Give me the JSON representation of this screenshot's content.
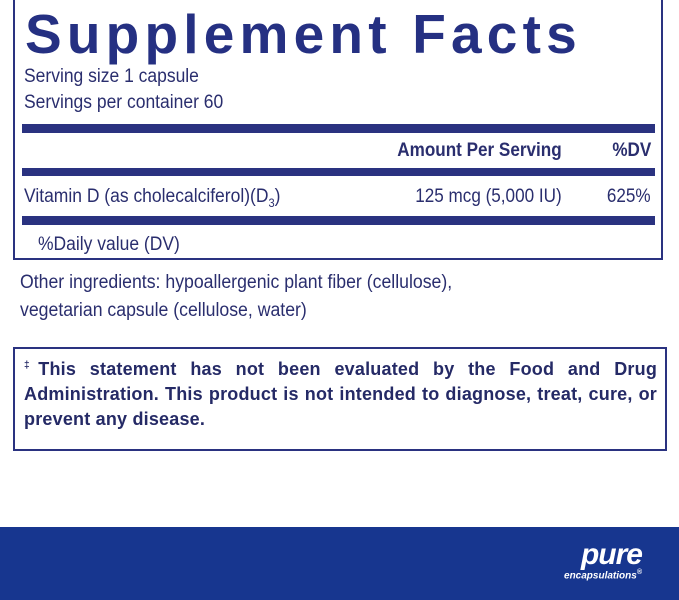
{
  "panel": {
    "title": "Supplement Facts",
    "serving_size": "Serving size  1 capsule",
    "servings_per_container": "Servings per container  60",
    "header_amount": "Amount Per Serving",
    "header_dv": "%DV",
    "rows": [
      {
        "name": "Vitamin D (as cholecalciferol)(D",
        "subscript": "3",
        "name_end": ")",
        "amount": "125 mcg (5,000 IU)",
        "dv": "625%"
      }
    ],
    "footnote": "%Daily value (DV)"
  },
  "other_ingredients": {
    "line1": "Other ingredients: hypoallergenic plant fiber (cellulose),",
    "line2": "vegetarian capsule (cellulose, water)"
  },
  "disclaimer": {
    "mark": "‡",
    "text": "This statement has not been evaluated by the Food and Drug Administration. This product is not intended to diagnose, treat, cure, or prevent any disease."
  },
  "brand": {
    "name": "pure",
    "sub": "encapsulations",
    "registered": "®"
  },
  "colors": {
    "navy": "#2a3280",
    "footer": "#17368f"
  }
}
